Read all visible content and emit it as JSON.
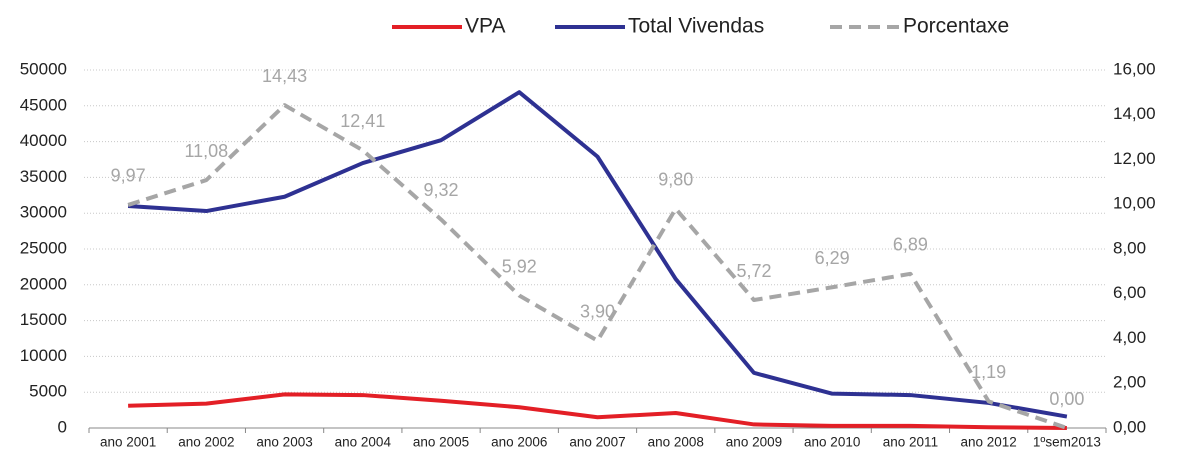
{
  "chart_data": {
    "type": "line",
    "categories": [
      "ano 2001",
      "ano 2002",
      "ano 2003",
      "ano 2004",
      "ano 2005",
      "ano 2006",
      "ano 2007",
      "ano 2008",
      "ano 2009",
      "ano 2010",
      "ano 2011",
      "ano 2012",
      "1ºsem2013"
    ],
    "series": [
      {
        "name": "VPA",
        "color": "#e31f26",
        "values": [
          3100,
          3400,
          4700,
          4600,
          3800,
          2900,
          1500,
          2100,
          500,
          300,
          300,
          100,
          0
        ]
      },
      {
        "name": "Total Vivendas",
        "color": "#2e3192",
        "values": [
          31000,
          30300,
          32300,
          37000,
          40200,
          46900,
          37900,
          20800,
          7700,
          4800,
          4600,
          3500,
          1600
        ]
      },
      {
        "name": "Porcentaxe",
        "color": "#a6a6a6",
        "axis": "y2",
        "style": "dashed",
        "values": [
          9.97,
          11.08,
          14.43,
          12.41,
          9.32,
          5.92,
          3.9,
          9.8,
          5.72,
          6.29,
          6.89,
          1.19,
          0.0
        ],
        "value_labels": [
          "9,97",
          "11,08",
          "14,43",
          "12,41",
          "9,32",
          "5,92",
          "3,90",
          "9,80",
          "5,72",
          "6,29",
          "6,89",
          "1,19",
          "0,00"
        ]
      }
    ],
    "ylim": [
      0,
      50000
    ],
    "yticks": [
      0,
      5000,
      10000,
      15000,
      20000,
      25000,
      30000,
      35000,
      40000,
      45000,
      50000
    ],
    "y2lim": [
      0,
      16
    ],
    "y2ticks": [
      {
        "value": 0,
        "label": "0,00"
      },
      {
        "value": 2,
        "label": "2,00"
      },
      {
        "value": 4,
        "label": "4,00"
      },
      {
        "value": 6,
        "label": "6,00"
      },
      {
        "value": 8,
        "label": "8,00"
      },
      {
        "value": 10,
        "label": "10,00"
      },
      {
        "value": 12,
        "label": "12,00"
      },
      {
        "value": 14,
        "label": "14,00"
      },
      {
        "value": 16,
        "label": "16,00"
      }
    ],
    "grid": true,
    "legend": "top"
  }
}
